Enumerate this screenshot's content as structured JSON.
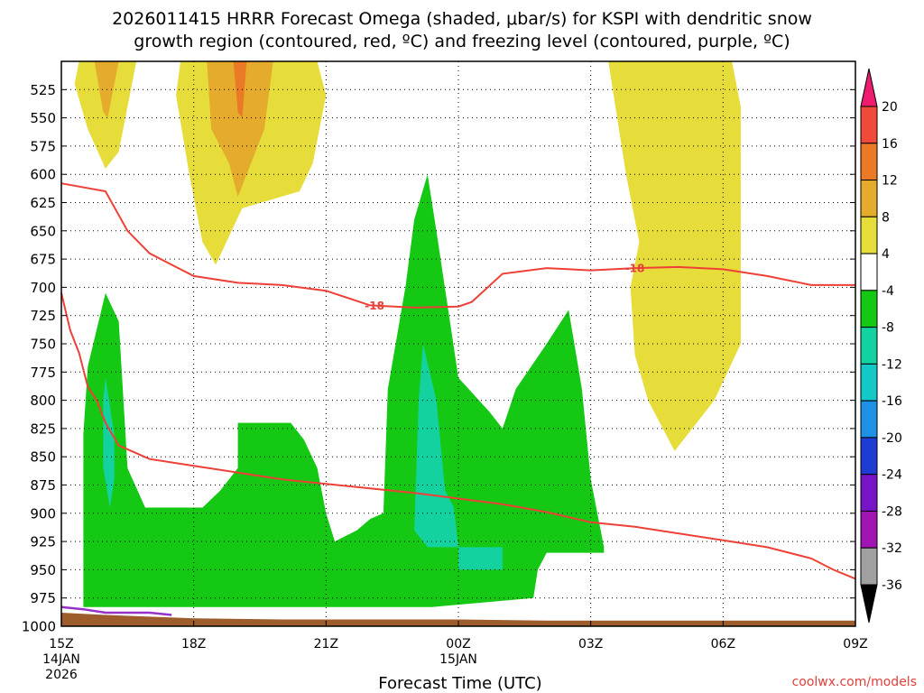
{
  "chart_data": {
    "type": "contour",
    "title_line1": "2026011415 HRRR Forecast Omega (shaded, μbar/s) for KSPI with dendritic snow",
    "title_line2": "growth region (contoured, red, ºC) and freezing level (contoured, purple, ºC)",
    "xlabel": "Forecast Time (UTC)",
    "credit": "coolwx.com/models",
    "x_ticks": [
      {
        "hour": 15,
        "label": "15Z",
        "sub1": "14JAN",
        "sub2": "2026"
      },
      {
        "hour": 18,
        "label": "18Z",
        "sub1": "",
        "sub2": ""
      },
      {
        "hour": 21,
        "label": "21Z",
        "sub1": "",
        "sub2": ""
      },
      {
        "hour": 24,
        "label": "00Z",
        "sub1": "15JAN",
        "sub2": ""
      },
      {
        "hour": 27,
        "label": "03Z",
        "sub1": "",
        "sub2": ""
      },
      {
        "hour": 30,
        "label": "06Z",
        "sub1": "",
        "sub2": ""
      },
      {
        "hour": 33,
        "label": "09Z",
        "sub1": "",
        "sub2": ""
      }
    ],
    "xlim": [
      15,
      33
    ],
    "ylim": [
      500,
      1000
    ],
    "y_ticks": [
      525,
      550,
      575,
      600,
      625,
      650,
      675,
      700,
      725,
      750,
      775,
      800,
      825,
      850,
      875,
      900,
      925,
      950,
      975,
      1000
    ],
    "grid": "dotted",
    "colorbar": {
      "labels": [
        "20",
        "16",
        "12",
        "8",
        "4",
        "-4",
        "-8",
        "-12",
        "-16",
        "-20",
        "-24",
        "-28",
        "-32",
        "-36"
      ],
      "colors": [
        "#ee1c6f",
        "#f04a3a",
        "#ea7a26",
        "#e4ab2c",
        "#e6dc3a",
        "#ffffff",
        "#14c814",
        "#14d2a0",
        "#14c8c8",
        "#1e90e6",
        "#1e3cd2",
        "#7814c8",
        "#a014b4",
        "#a0a0a0",
        "#000000"
      ]
    },
    "colors": {
      "y4": "#e6dc3a",
      "y8": "#e4ab2c",
      "y12": "#ea7a26",
      "y16": "#f04a3a",
      "g4": "#14c814",
      "g8": "#14d2a0",
      "dgz": "#ee4036",
      "frz": "#9632c8",
      "ground": "#9c5c2c"
    },
    "dgz_label": "-18",
    "shaded_regions": [
      {
        "color": "y4",
        "pts": [
          [
            15.4,
            500
          ],
          [
            16.7,
            500
          ],
          [
            16.3,
            580
          ],
          [
            16.0,
            595
          ],
          [
            15.6,
            560
          ],
          [
            15.3,
            520
          ]
        ]
      },
      {
        "color": "y8",
        "pts": [
          [
            15.75,
            500
          ],
          [
            16.3,
            500
          ],
          [
            16.05,
            550
          ],
          [
            15.95,
            545
          ]
        ]
      },
      {
        "color": "y4",
        "pts": [
          [
            17.7,
            500
          ],
          [
            20.8,
            500
          ],
          [
            21.0,
            530
          ],
          [
            20.7,
            590
          ],
          [
            20.4,
            615
          ],
          [
            19.1,
            630
          ],
          [
            18.5,
            680
          ],
          [
            18.2,
            660
          ],
          [
            17.9,
            600
          ],
          [
            17.6,
            530
          ]
        ]
      },
      {
        "color": "y8",
        "pts": [
          [
            18.3,
            500
          ],
          [
            19.8,
            500
          ],
          [
            19.6,
            560
          ],
          [
            19.3,
            590
          ],
          [
            19.0,
            620
          ],
          [
            18.8,
            590
          ],
          [
            18.4,
            560
          ]
        ]
      },
      {
        "color": "y12",
        "pts": [
          [
            18.9,
            500
          ],
          [
            19.2,
            500
          ],
          [
            19.1,
            550
          ],
          [
            19.0,
            545
          ]
        ]
      },
      {
        "color": "y4",
        "pts": [
          [
            27.4,
            500
          ],
          [
            30.2,
            500
          ],
          [
            30.4,
            540
          ],
          [
            30.4,
            660
          ],
          [
            30.4,
            750
          ],
          [
            29.8,
            800
          ],
          [
            28.9,
            845
          ],
          [
            28.3,
            800
          ],
          [
            28.0,
            760
          ],
          [
            27.9,
            700
          ],
          [
            28.1,
            660
          ],
          [
            27.8,
            600
          ],
          [
            27.6,
            550
          ]
        ]
      },
      {
        "color": "g4",
        "pts": [
          [
            15.5,
            830
          ],
          [
            15.6,
            770
          ],
          [
            16.0,
            705
          ],
          [
            16.3,
            730
          ],
          [
            16.5,
            860
          ],
          [
            16.9,
            895
          ],
          [
            17.5,
            895
          ],
          [
            18.2,
            895
          ],
          [
            18.6,
            880
          ],
          [
            19.0,
            860
          ],
          [
            19.0,
            820
          ],
          [
            20.2,
            820
          ],
          [
            20.5,
            835
          ],
          [
            20.8,
            860
          ],
          [
            21.0,
            900
          ],
          [
            21.2,
            925
          ],
          [
            21.7,
            915
          ],
          [
            22.0,
            905
          ],
          [
            22.3,
            900
          ],
          [
            22.4,
            790
          ],
          [
            22.8,
            700
          ],
          [
            23.0,
            640
          ],
          [
            23.3,
            600
          ],
          [
            23.5,
            650
          ],
          [
            24.0,
            780
          ],
          [
            24.7,
            810
          ],
          [
            25.0,
            825
          ],
          [
            25.3,
            790
          ],
          [
            26.0,
            750
          ],
          [
            26.5,
            720
          ],
          [
            26.8,
            790
          ],
          [
            27.0,
            870
          ],
          [
            27.3,
            930
          ],
          [
            27.3,
            935
          ],
          [
            26.0,
            935
          ],
          [
            25.8,
            950
          ],
          [
            25.7,
            975
          ],
          [
            23.4,
            983
          ],
          [
            21.0,
            983
          ],
          [
            18.0,
            983
          ],
          [
            15.5,
            983
          ]
        ]
      },
      {
        "color": "g8",
        "pts": [
          [
            16.0,
            780
          ],
          [
            16.2,
            830
          ],
          [
            16.2,
            870
          ],
          [
            16.1,
            895
          ],
          [
            15.95,
            860
          ],
          [
            15.95,
            800
          ]
        ]
      },
      {
        "color": "g8",
        "pts": [
          [
            23.2,
            750
          ],
          [
            23.5,
            800
          ],
          [
            23.7,
            880
          ],
          [
            23.9,
            895
          ],
          [
            24.0,
            930
          ],
          [
            23.3,
            930
          ],
          [
            23.0,
            915
          ],
          [
            23.1,
            800
          ]
        ]
      },
      {
        "color": "g8",
        "pts": [
          [
            24.0,
            930
          ],
          [
            25.0,
            930
          ],
          [
            25.0,
            950
          ],
          [
            24.0,
            950
          ]
        ]
      }
    ],
    "dgz_lines": [
      [
        [
          15,
          608
        ],
        [
          16,
          615
        ],
        [
          16.5,
          650
        ],
        [
          17,
          670
        ],
        [
          17.5,
          680
        ],
        [
          18,
          690
        ],
        [
          18.5,
          693
        ],
        [
          19,
          696
        ],
        [
          20,
          698
        ],
        [
          21,
          703
        ],
        [
          22,
          716
        ],
        [
          23,
          718
        ],
        [
          24,
          717
        ],
        [
          24.3,
          713
        ],
        [
          25,
          688
        ],
        [
          26,
          683
        ],
        [
          27,
          685
        ],
        [
          28,
          683
        ],
        [
          29,
          682
        ],
        [
          30,
          684
        ],
        [
          31,
          690
        ],
        [
          32,
          698
        ],
        [
          33,
          698
        ]
      ],
      [
        [
          15,
          705
        ],
        [
          15.2,
          738
        ],
        [
          15.4,
          758
        ],
        [
          15.6,
          788
        ],
        [
          15.8,
          800
        ],
        [
          16.0,
          820
        ],
        [
          16.3,
          840
        ],
        [
          17,
          852
        ],
        [
          18,
          858
        ],
        [
          19,
          864
        ],
        [
          20,
          870
        ],
        [
          21,
          874
        ],
        [
          22,
          878
        ],
        [
          23,
          882
        ],
        [
          24,
          887
        ],
        [
          25,
          892
        ],
        [
          26,
          899
        ],
        [
          27,
          908
        ],
        [
          28,
          912
        ],
        [
          29,
          918
        ],
        [
          30,
          924
        ],
        [
          31,
          930
        ],
        [
          32,
          940
        ],
        [
          32.5,
          950
        ],
        [
          33,
          958
        ]
      ]
    ],
    "frz_line": [
      [
        15,
        983
      ],
      [
        15.5,
        985
      ],
      [
        16,
        988
      ],
      [
        17,
        988
      ],
      [
        17.5,
        990
      ]
    ],
    "ground_top": [
      [
        15,
        988
      ],
      [
        16,
        990
      ],
      [
        18,
        993
      ],
      [
        20,
        994
      ],
      [
        22,
        994
      ],
      [
        24,
        994
      ],
      [
        26,
        995
      ],
      [
        28,
        995
      ],
      [
        33,
        995
      ]
    ]
  }
}
